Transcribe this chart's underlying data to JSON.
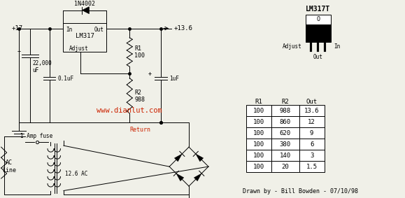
{
  "bg_color": "#f0f0e8",
  "line_color": "#000000",
  "red_text_color": "#cc2200",
  "watermark": "www.dianlut.com",
  "credit": "Drawn by - Bill Bowden - 07/10/98",
  "table_headers": [
    "R1",
    "R2",
    "Out"
  ],
  "table_data": [
    [
      "100",
      "988",
      "13.6"
    ],
    [
      "100",
      "860",
      "12"
    ],
    [
      "100",
      "620",
      "9"
    ],
    [
      "100",
      "380",
      "6"
    ],
    [
      "100",
      "140",
      "3"
    ],
    [
      "100",
      "20",
      "1.5"
    ]
  ],
  "lm317t_label": "LM317T",
  "pin_labels": [
    "Adjust",
    "Out",
    "In"
  ],
  "voltage_in": "+17",
  "voltage_out": "+13.6",
  "cap1_label": "22,000\nuF",
  "cap2_label": "0.1uF",
  "cap3_label": "1uF",
  "r1_label": "R1\n100",
  "r2_label": "R2\n988",
  "diode_label": "1N4002",
  "fuse_label": "1 Amp fuse",
  "ac_label": "AC\nLine",
  "ac_voltage": "12.6 AC",
  "ic_label": "LM317",
  "return_label": "Return",
  "in_label": "In",
  "out_label": "Out",
  "adjust_label": "Adjust"
}
